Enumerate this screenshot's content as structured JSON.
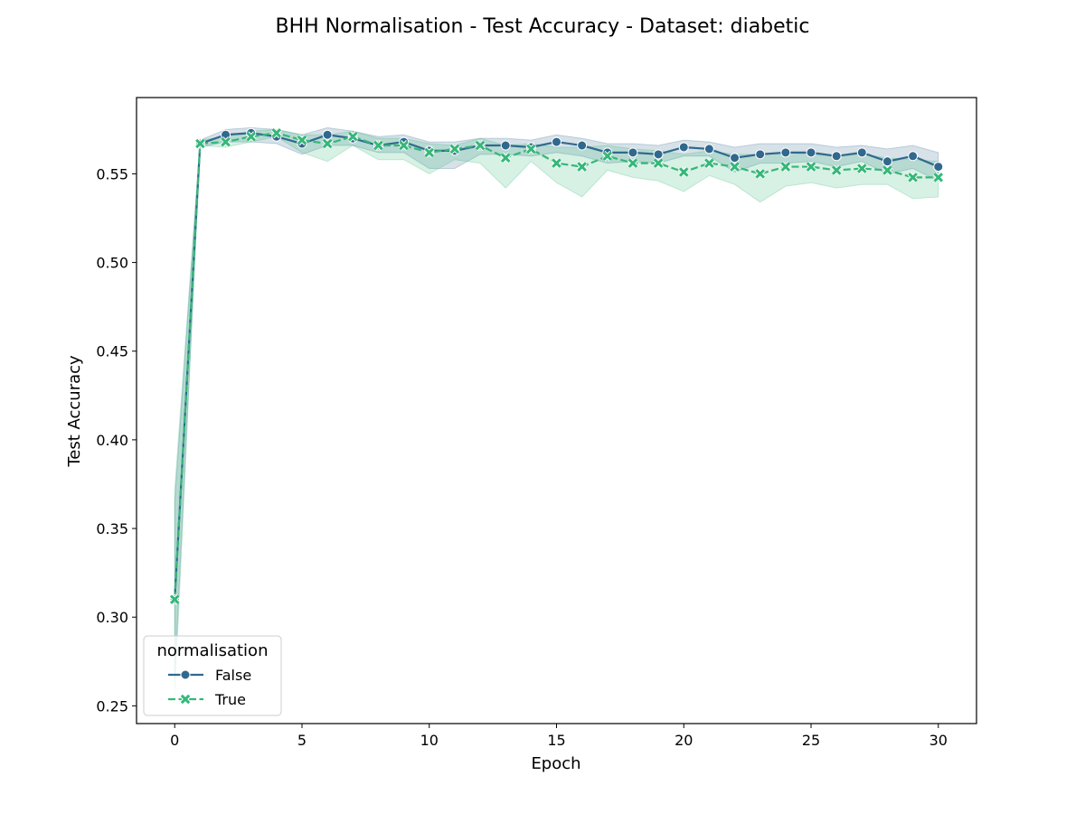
{
  "chart_data": {
    "type": "line",
    "title": "BHH Normalisation - Test Accuracy - Dataset: diabetic",
    "xlabel": "Epoch",
    "ylabel": "Test Accuracy",
    "xlim": [
      -1.5,
      31.5
    ],
    "ylim": [
      0.24,
      0.593
    ],
    "xticks": [
      0,
      5,
      10,
      15,
      20,
      25,
      30
    ],
    "yticks": [
      0.25,
      0.3,
      0.35,
      0.4,
      0.45,
      0.5,
      0.55
    ],
    "ytick_labels": [
      "0.25",
      "0.30",
      "0.35",
      "0.40",
      "0.45",
      "0.50",
      "0.55"
    ],
    "grid": false,
    "legend": {
      "title": "normalisation",
      "placement": "lower-left"
    },
    "x": [
      0,
      1,
      2,
      3,
      4,
      5,
      6,
      7,
      8,
      9,
      10,
      11,
      12,
      13,
      14,
      15,
      16,
      17,
      18,
      19,
      20,
      21,
      22,
      23,
      24,
      25,
      26,
      27,
      28,
      29,
      30
    ],
    "series": [
      {
        "name": "False",
        "color": "#31688e",
        "marker": "circle",
        "linestyle": "solid",
        "values": [
          0.31,
          0.567,
          0.572,
          0.573,
          0.571,
          0.567,
          0.572,
          0.57,
          0.566,
          0.568,
          0.563,
          0.563,
          0.566,
          0.566,
          0.565,
          0.568,
          0.566,
          0.562,
          0.562,
          0.561,
          0.565,
          0.564,
          0.559,
          0.561,
          0.562,
          0.562,
          0.56,
          0.562,
          0.557,
          0.56,
          0.554
        ],
        "ci_low": [
          0.265,
          0.565,
          0.568,
          0.568,
          0.567,
          0.561,
          0.566,
          0.566,
          0.562,
          0.562,
          0.553,
          0.553,
          0.561,
          0.561,
          0.56,
          0.562,
          0.56,
          0.556,
          0.557,
          0.556,
          0.56,
          0.56,
          0.551,
          0.556,
          0.556,
          0.557,
          0.554,
          0.557,
          0.55,
          0.553,
          0.546
        ],
        "ci_high": [
          0.365,
          0.569,
          0.575,
          0.576,
          0.575,
          0.572,
          0.576,
          0.574,
          0.571,
          0.572,
          0.568,
          0.568,
          0.57,
          0.57,
          0.569,
          0.572,
          0.57,
          0.567,
          0.567,
          0.566,
          0.569,
          0.568,
          0.565,
          0.567,
          0.567,
          0.567,
          0.565,
          0.566,
          0.564,
          0.566,
          0.562
        ]
      },
      {
        "name": "True",
        "color": "#35b779",
        "marker": "x",
        "linestyle": "dashed",
        "values": [
          0.31,
          0.567,
          0.568,
          0.571,
          0.573,
          0.569,
          0.567,
          0.571,
          0.566,
          0.566,
          0.562,
          0.564,
          0.566,
          0.559,
          0.564,
          0.556,
          0.554,
          0.56,
          0.556,
          0.556,
          0.551,
          0.556,
          0.554,
          0.55,
          0.554,
          0.554,
          0.552,
          0.553,
          0.552,
          0.548,
          0.548
        ],
        "ci_low": [
          0.255,
          0.566,
          0.565,
          0.568,
          0.571,
          0.562,
          0.557,
          0.566,
          0.558,
          0.558,
          0.55,
          0.558,
          0.556,
          0.542,
          0.557,
          0.545,
          0.537,
          0.552,
          0.548,
          0.546,
          0.54,
          0.549,
          0.544,
          0.534,
          0.543,
          0.545,
          0.542,
          0.544,
          0.544,
          0.536,
          0.537
        ],
        "ci_high": [
          0.372,
          0.569,
          0.571,
          0.574,
          0.575,
          0.572,
          0.572,
          0.574,
          0.57,
          0.57,
          0.567,
          0.566,
          0.57,
          0.566,
          0.567,
          0.565,
          0.565,
          0.566,
          0.564,
          0.563,
          0.561,
          0.563,
          0.561,
          0.561,
          0.562,
          0.561,
          0.56,
          0.561,
          0.559,
          0.558,
          0.557
        ]
      }
    ]
  }
}
